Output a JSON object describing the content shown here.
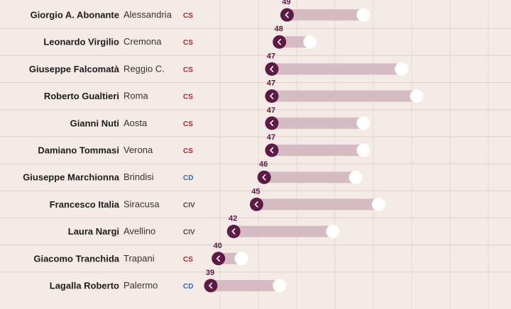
{
  "chart_data": {
    "type": "dumbbell",
    "title": "",
    "xlabel": "",
    "ylabel": "",
    "colors": {
      "cs": "#b0262f",
      "cd": "#2b6cb0",
      "civ": "#4a4a4a",
      "marker": "#5e1a45",
      "bar": "#d5bcc2",
      "end_marker": "#ffffff"
    },
    "rows": [
      {
        "name": "Giorgio A. Abonante",
        "city": "Alessandria",
        "party": "CS",
        "value": 49,
        "end": 59
      },
      {
        "name": "Leonardo Virgilio",
        "city": "Cremona",
        "party": "CS",
        "value": 48,
        "end": 52
      },
      {
        "name": "Giuseppe Falcomatà",
        "city": "Reggio C.",
        "party": "CS",
        "value": 47,
        "end": 64
      },
      {
        "name": "Roberto Gualtieri",
        "city": "Roma",
        "party": "CS",
        "value": 47,
        "end": 66
      },
      {
        "name": "Gianni Nuti",
        "city": "Aosta",
        "party": "CS",
        "value": 47,
        "end": 59
      },
      {
        "name": "Damiano Tommasi",
        "city": "Verona",
        "party": "CS",
        "value": 47,
        "end": 59
      },
      {
        "name": "Giuseppe Marchionna",
        "city": "Brindisi",
        "party": "CD",
        "value": 46,
        "end": 58
      },
      {
        "name": "Francesco Italia",
        "city": "Siracusa",
        "party": "CIV",
        "value": 45,
        "end": 61
      },
      {
        "name": "Laura Nargi",
        "city": "Avellino",
        "party": "CIV",
        "value": 42,
        "end": 55
      },
      {
        "name": "Giacomo Tranchida",
        "city": "Trapani",
        "party": "CS",
        "value": 40,
        "end": 43
      },
      {
        "name": "Lagalla Roberto",
        "city": "Palermo",
        "party": "CD",
        "value": 39,
        "end": 48
      }
    ]
  }
}
